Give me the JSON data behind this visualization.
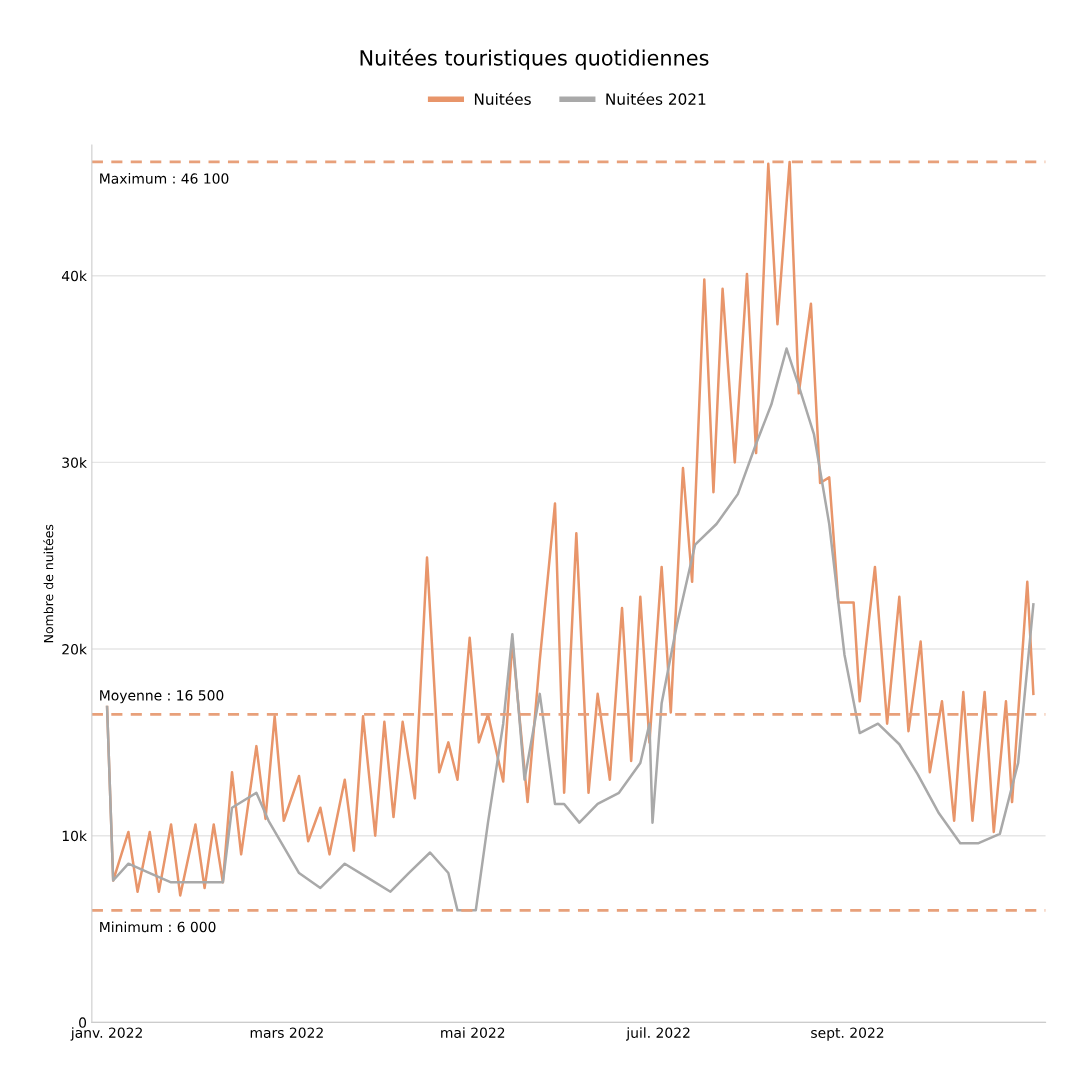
{
  "chart_data": {
    "type": "line",
    "title": "Nuitées touristiques quotidiennes",
    "ylabel": "Nombre de nuitées",
    "legend": "top",
    "series": [
      {
        "name": "Nuitées",
        "color": "#e8956a",
        "x": [
          "2022-01-01",
          "2022-01-03",
          "2022-01-08",
          "2022-01-11",
          "2022-01-15",
          "2022-01-18",
          "2022-01-22",
          "2022-01-25",
          "2022-01-30",
          "2022-02-02",
          "2022-02-05",
          "2022-02-08",
          "2022-02-11",
          "2022-02-14",
          "2022-02-19",
          "2022-02-22",
          "2022-02-25",
          "2022-02-28",
          "2022-03-05",
          "2022-03-08",
          "2022-03-12",
          "2022-03-15",
          "2022-03-20",
          "2022-03-23",
          "2022-03-26",
          "2022-03-30",
          "2022-04-02",
          "2022-04-05",
          "2022-04-08",
          "2022-04-12",
          "2022-04-16",
          "2022-04-20",
          "2022-04-23",
          "2022-04-26",
          "2022-04-30",
          "2022-05-03",
          "2022-05-06",
          "2022-05-11",
          "2022-05-14",
          "2022-05-19",
          "2022-05-23",
          "2022-05-28",
          "2022-05-31",
          "2022-06-04",
          "2022-06-08",
          "2022-06-11",
          "2022-06-15",
          "2022-06-19",
          "2022-06-22",
          "2022-06-25",
          "2022-06-28",
          "2022-07-02",
          "2022-07-05",
          "2022-07-09",
          "2022-07-12",
          "2022-07-16",
          "2022-07-19",
          "2022-07-22",
          "2022-07-26",
          "2022-07-30",
          "2022-08-02",
          "2022-08-06",
          "2022-08-09",
          "2022-08-13",
          "2022-08-16",
          "2022-08-20",
          "2022-08-23",
          "2022-08-26",
          "2022-08-29",
          "2022-09-03",
          "2022-09-05",
          "2022-09-10",
          "2022-09-14",
          "2022-09-18",
          "2022-09-21",
          "2022-09-25",
          "2022-09-28",
          "2022-10-02",
          "2022-10-06",
          "2022-10-09",
          "2022-10-12",
          "2022-10-16",
          "2022-10-19",
          "2022-10-23",
          "2022-10-25",
          "2022-10-30",
          "2022-11-01"
        ],
        "values": [
          16900,
          7600,
          10200,
          7000,
          10200,
          7000,
          10600,
          6800,
          10600,
          7200,
          10600,
          7500,
          13400,
          9000,
          14800,
          10900,
          16400,
          10800,
          13200,
          9700,
          11500,
          9000,
          13000,
          9200,
          16400,
          10000,
          16100,
          11000,
          16100,
          12000,
          24900,
          13400,
          15000,
          13000,
          20600,
          15000,
          16500,
          12900,
          20400,
          11800,
          19400,
          27800,
          12300,
          26200,
          12300,
          17600,
          13000,
          22200,
          14000,
          22800,
          15000,
          24400,
          16600,
          29700,
          23600,
          39800,
          28400,
          39300,
          30000,
          40100,
          30500,
          46000,
          37400,
          46100,
          33700,
          38500,
          28900,
          29200,
          22500,
          22500,
          17200,
          24400,
          16000,
          22800,
          15600,
          20400,
          13400,
          17200,
          10800,
          17700,
          10800,
          17700,
          10200,
          17200,
          11800,
          23600,
          17600
        ]
      },
      {
        "name": "Nuitées 2021",
        "color": "#a9a9a9",
        "x": [
          "2022-01-01",
          "2022-01-03",
          "2022-01-08",
          "2022-01-15",
          "2022-01-22",
          "2022-01-30",
          "2022-02-08",
          "2022-02-11",
          "2022-02-19",
          "2022-02-23",
          "2022-03-05",
          "2022-03-12",
          "2022-03-20",
          "2022-03-28",
          "2022-04-04",
          "2022-04-10",
          "2022-04-17",
          "2022-04-23",
          "2022-04-26",
          "2022-05-02",
          "2022-05-06",
          "2022-05-11",
          "2022-05-14",
          "2022-05-18",
          "2022-05-23",
          "2022-05-28",
          "2022-05-31",
          "2022-06-05",
          "2022-06-11",
          "2022-06-18",
          "2022-06-25",
          "2022-06-28",
          "2022-06-29",
          "2022-07-02",
          "2022-07-07",
          "2022-07-13",
          "2022-07-20",
          "2022-07-27",
          "2022-08-02",
          "2022-08-07",
          "2022-08-12",
          "2022-08-16",
          "2022-08-21",
          "2022-08-26",
          "2022-08-31",
          "2022-09-05",
          "2022-09-11",
          "2022-09-18",
          "2022-09-24",
          "2022-10-01",
          "2022-10-08",
          "2022-10-14",
          "2022-10-21",
          "2022-10-27",
          "2022-11-01"
        ],
        "values": [
          16900,
          7600,
          8500,
          8000,
          7500,
          7500,
          7500,
          11500,
          12300,
          10800,
          8000,
          7200,
          8500,
          7700,
          7000,
          8000,
          9100,
          8000,
          6000,
          6000,
          10700,
          16000,
          20800,
          13000,
          17600,
          11700,
          11700,
          10700,
          11700,
          12300,
          13900,
          16000,
          10700,
          17100,
          21300,
          25600,
          26700,
          28300,
          31000,
          33100,
          36100,
          34100,
          31500,
          26700,
          19700,
          15500,
          16000,
          14900,
          13300,
          11200,
          9600,
          9600,
          10100,
          13900,
          22400
        ]
      }
    ],
    "xlim": [
      "2021-12-27",
      "2022-11-05"
    ],
    "xticks": [
      {
        "value": "2022-01-01",
        "label": "janv. 2022"
      },
      {
        "value": "2022-03-01",
        "label": "mars 2022"
      },
      {
        "value": "2022-05-01",
        "label": "mai 2022"
      },
      {
        "value": "2022-07-01",
        "label": "juil. 2022"
      },
      {
        "value": "2022-09-01",
        "label": "sept. 2022"
      }
    ],
    "ylim": [
      0,
      47000
    ],
    "yticks": [
      {
        "value": 0,
        "label": "0"
      },
      {
        "value": 10000,
        "label": "10k"
      },
      {
        "value": 20000,
        "label": "20k"
      },
      {
        "value": 30000,
        "label": "30k"
      },
      {
        "value": 40000,
        "label": "40k"
      }
    ],
    "grid": "y",
    "line_style": "solid",
    "marker": "none",
    "ref_lines": [
      {
        "axis": "y",
        "value": 46100,
        "label": "Maximum : 46 100",
        "color": "#e8a07a",
        "line_style": "dashed"
      },
      {
        "axis": "y",
        "value": 16500,
        "label": "Moyenne : 16 500",
        "color": "#e8a07a",
        "line_style": "dashed"
      },
      {
        "axis": "y",
        "value": 6000,
        "label": "Minimum : 6 000",
        "color": "#e8a07a",
        "line_style": "dashed"
      }
    ]
  }
}
